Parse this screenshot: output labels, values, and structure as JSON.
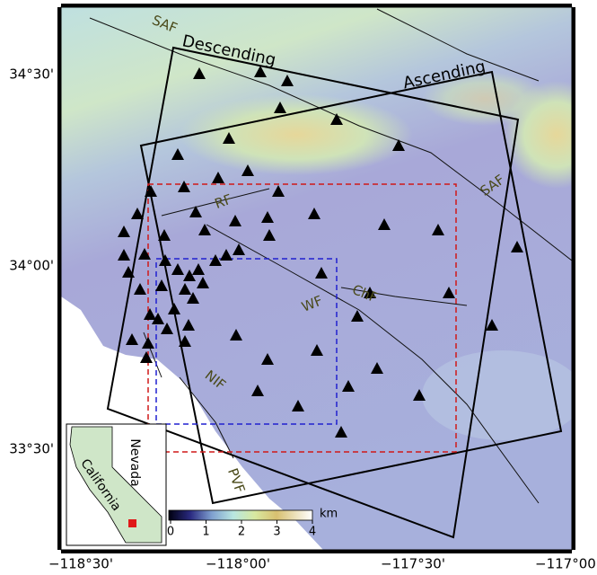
{
  "map": {
    "lon_ticks": [
      "−118°30'",
      "−118°00'",
      "−117°30'",
      "−117°00'"
    ],
    "lat_ticks": [
      "34°30'",
      "34°00'",
      "33°30'"
    ],
    "faults": [
      "SAF",
      "SAF",
      "RF",
      "ChF",
      "WF",
      "NIF",
      "PVF"
    ],
    "frames": [
      "Descending",
      "Ascending"
    ],
    "inset": [
      "Nevada",
      "California"
    ],
    "colorbar": {
      "ticks": [
        0,
        1,
        2,
        3,
        4
      ],
      "unit": "km"
    }
  }
}
